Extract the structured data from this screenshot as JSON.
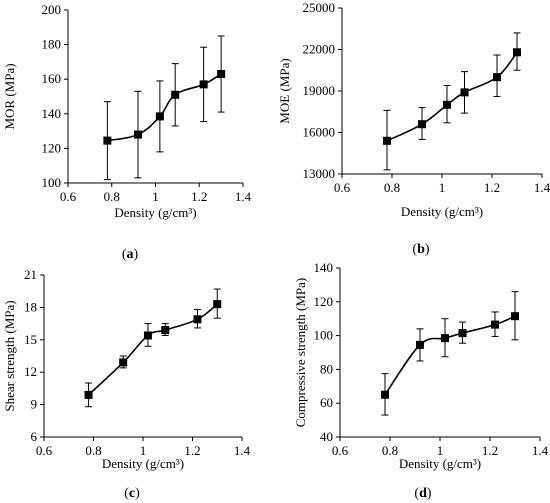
{
  "figure": {
    "panels": [
      {
        "label_open": "(",
        "label_letter": "a",
        "label_close": ")"
      },
      {
        "label_open": "(",
        "label_letter": "b",
        "label_close": ")"
      },
      {
        "label_open": "(",
        "label_letter": "c",
        "label_close": ")"
      },
      {
        "label_open": "(",
        "label_letter": "d",
        "label_close": ")"
      }
    ]
  },
  "colors": {
    "line": "#000000",
    "marker": "#000000",
    "axis": "#000000"
  },
  "chart_data": [
    {
      "type": "line",
      "xlabel": "Density (g/cm³)",
      "ylabel": "MOR (MPa)",
      "xlim": [
        0.6,
        1.4
      ],
      "xticks": [
        0.6,
        0.8,
        1,
        1.2,
        1.4
      ],
      "xtick_labels": [
        "0.6",
        "0.8",
        "1",
        "1.2",
        "1.4"
      ],
      "ylim": [
        100,
        200
      ],
      "yticks": [
        100,
        120,
        140,
        160,
        180,
        200
      ],
      "ytick_labels": [
        "100",
        "120",
        "140",
        "160",
        "180",
        "200"
      ],
      "grid": false,
      "x": [
        0.78,
        0.92,
        1.02,
        1.09,
        1.22,
        1.3
      ],
      "y": [
        124.5,
        128,
        138.5,
        151,
        157,
        163
      ],
      "err_low": [
        102,
        103,
        118,
        133,
        135.5,
        141
      ],
      "err_high": [
        147,
        153,
        159,
        169,
        178.5,
        185
      ]
    },
    {
      "type": "line",
      "xlabel": "Density (g/cm³)",
      "ylabel": "MOE (MPa)",
      "xlim": [
        0.6,
        1.4
      ],
      "xticks": [
        0.6,
        0.8,
        1,
        1.2,
        1.4
      ],
      "xtick_labels": [
        "0.6",
        "0.8",
        "1",
        "1.2",
        "1.4"
      ],
      "ylim": [
        13000,
        25000
      ],
      "yticks": [
        13000,
        16000,
        19000,
        22000,
        25000
      ],
      "ytick_labels": [
        "13000",
        "16000",
        "19000",
        "22000",
        "25000"
      ],
      "grid": false,
      "x": [
        0.78,
        0.92,
        1.02,
        1.09,
        1.22,
        1.3
      ],
      "y": [
        15400,
        16600,
        18000,
        18900,
        20000,
        21800
      ],
      "err_low": [
        13300,
        15500,
        16700,
        17400,
        18600,
        20500
      ],
      "err_high": [
        17600,
        17800,
        19400,
        20400,
        21600,
        23200
      ]
    },
    {
      "type": "line",
      "xlabel": "Density (g/cm³)",
      "ylabel": "Shear strength (MPa)",
      "xlim": [
        0.6,
        1.4
      ],
      "xticks": [
        0.6,
        0.8,
        1,
        1.2,
        1.4
      ],
      "xtick_labels": [
        "0.6",
        "0.8",
        "1",
        "1.2",
        "1.4"
      ],
      "ylim": [
        6,
        21
      ],
      "yticks": [
        6,
        9,
        12,
        15,
        18,
        21
      ],
      "ytick_labels": [
        "6",
        "9",
        "12",
        "15",
        "18",
        "21"
      ],
      "grid": false,
      "x": [
        0.78,
        0.92,
        1.02,
        1.09,
        1.22,
        1.3
      ],
      "y": [
        9.9,
        12.9,
        15.4,
        15.9,
        16.9,
        18.3
      ],
      "err_low": [
        8.8,
        12.4,
        14.4,
        15.4,
        16.1,
        17.0
      ],
      "err_high": [
        11.0,
        13.5,
        16.5,
        16.5,
        17.8,
        19.7
      ]
    },
    {
      "type": "line",
      "xlabel": "Density (g/cm³)",
      "ylabel": "Compressive strength (MPa)",
      "xlim": [
        0.6,
        1.4
      ],
      "xticks": [
        0.6,
        0.8,
        1,
        1.2,
        1.4
      ],
      "xtick_labels": [
        "0.6",
        "0.8",
        "1",
        "1.2",
        "1.4"
      ],
      "ylim": [
        40,
        140
      ],
      "yticks": [
        40,
        60,
        80,
        100,
        120,
        140
      ],
      "ytick_labels": [
        "40",
        "60",
        "80",
        "100",
        "120",
        "140"
      ],
      "grid": false,
      "x": [
        0.78,
        0.92,
        1.02,
        1.09,
        1.22,
        1.3
      ],
      "y": [
        65,
        94.5,
        98.5,
        101.5,
        106.5,
        111.5
      ],
      "err_low": [
        53,
        85,
        87.5,
        95.5,
        99.5,
        97.5
      ],
      "err_high": [
        77.5,
        104,
        110,
        108,
        114,
        126
      ]
    }
  ]
}
